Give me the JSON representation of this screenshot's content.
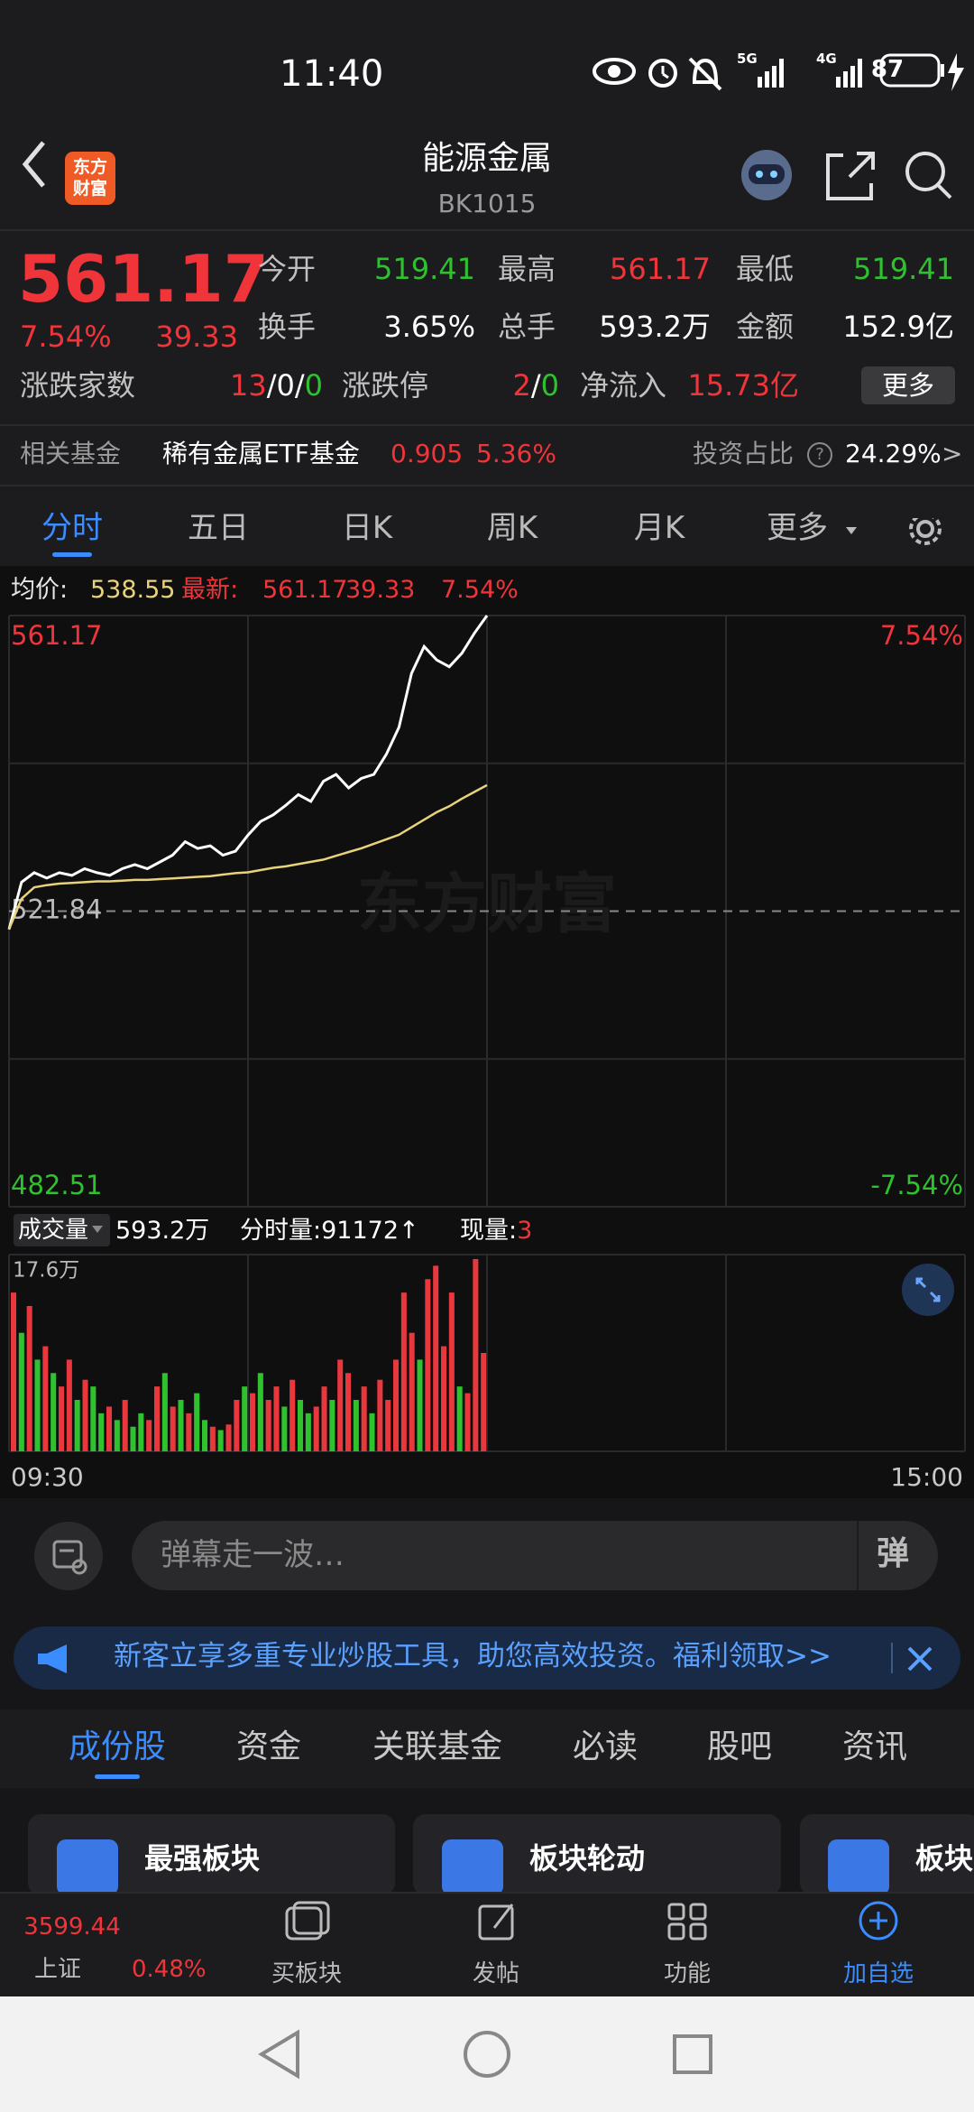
{
  "status_bar": {
    "time": "11:40",
    "net1": "5G",
    "net2": "4G",
    "battery": "87"
  },
  "header": {
    "logo": [
      "东方",
      "财富"
    ],
    "title": "能源金属",
    "code": "BK1015"
  },
  "quote": {
    "price": "561.17",
    "change_pct": "7.54%",
    "change": "39.33",
    "stats": [
      {
        "label": "今开",
        "value": "519.41",
        "color": "#2ec22e"
      },
      {
        "label": "最高",
        "value": "561.17",
        "color": "#f0353a"
      },
      {
        "label": "最低",
        "value": "519.41",
        "color": "#2ec22e"
      },
      {
        "label": "换手",
        "value": "3.65%",
        "color": "#ffffff"
      },
      {
        "label": "总手",
        "value": "593.2万",
        "color": "#ffffff"
      },
      {
        "label": "金额",
        "value": "152.9亿",
        "color": "#ffffff"
      }
    ],
    "counts": {
      "label": "涨跌家数",
      "up": "13",
      "sep": "/",
      "flat": "0",
      "down": "0"
    },
    "limit": {
      "label": "涨跌停",
      "up": "2",
      "sep": "/",
      "down": "0"
    },
    "inflow": {
      "label": "净流入",
      "value": "15.73亿"
    },
    "more": "更多"
  },
  "fund": {
    "label": "相关基金",
    "name": "稀有金属ETF基金",
    "price": "0.905",
    "change": "5.36%",
    "ratio_label": "投资占比",
    "ratio_help": "?",
    "ratio": "24.29%",
    "arrow": ">"
  },
  "tabs": {
    "items": [
      "分时",
      "五日",
      "日K",
      "周K",
      "月K",
      "更多"
    ],
    "active": 0
  },
  "info": {
    "avg_label": "均价:",
    "avg": "538.55",
    "last_label": "最新:",
    "last": "561.17",
    "change": "39.33",
    "change_pct": "7.54%"
  },
  "chart_data": [
    {
      "type": "line",
      "watermark": "东方财富",
      "ylim": [
        482.51,
        561.17
      ],
      "yticks": [
        561.17,
        521.84,
        482.51
      ],
      "ytick_colors": [
        "#f0353a",
        "#bbbbbb",
        "#2ec22e"
      ],
      "y2lim": [
        -7.54,
        7.54
      ],
      "y2ticks": [
        {
          "value": 7.54,
          "label": "7.54%"
        },
        {
          "value": -7.54,
          "label": "-7.54%"
        }
      ],
      "y2tick_colors": [
        "#f0353a",
        "#2ec22e"
      ],
      "grid": true,
      "series": [
        {
          "color": "#ffffff",
          "values": [
            519.42,
            525.69,
            526.95,
            526.23,
            526.95,
            526.59,
            527.48,
            526.95,
            526.59,
            527.48,
            528.02,
            527.48,
            528.38,
            529.28,
            531.07,
            530.17,
            530.53,
            529.28,
            529.81,
            531.96,
            533.76,
            534.65,
            535.91,
            537.34,
            536.44,
            539.13,
            540.03,
            538.23,
            539.49,
            540.03,
            542.71,
            546.3,
            553.47,
            557.05,
            555.26,
            554.36,
            556.15,
            558.84,
            561.17
          ]
        },
        {
          "color": "#e8d27a",
          "values": [
            519.4,
            523.5,
            525.0,
            525.3,
            525.5,
            525.6,
            525.7,
            525.8,
            525.8,
            525.9,
            526.0,
            526.0,
            526.1,
            526.2,
            526.3,
            526.4,
            526.5,
            526.7,
            526.9,
            527.0,
            527.3,
            527.6,
            527.8,
            528.1,
            528.4,
            528.7,
            529.2,
            529.7,
            530.2,
            530.8,
            531.4,
            532.0,
            533.0,
            534.0,
            535.0,
            535.8,
            536.8,
            537.7,
            538.6
          ]
        }
      ]
    },
    {
      "type": "bar",
      "label": "成交量",
      "total": "593.2万",
      "tick_label": "分时量:",
      "tick_value": "91172",
      "tick_arrow": "↑",
      "now_label": "现量:",
      "now_value": "3",
      "ylim": [
        0,
        17.6
      ],
      "yticks": [
        {
          "value": 17.6,
          "label": "17.6万"
        }
      ],
      "x_labels": [
        "09:30",
        "15:00"
      ],
      "values": [
        14.2,
        10.6,
        13.0,
        8.2,
        9.4,
        7.0,
        5.8,
        8.2,
        4.6,
        6.4,
        5.8,
        3.4,
        4.0,
        2.8,
        4.6,
        2.2,
        3.4,
        2.8,
        5.8,
        7.0,
        4.0,
        4.6,
        3.4,
        5.2,
        2.8,
        2.2,
        1.9,
        2.4,
        4.6,
        5.8,
        5.2,
        7.0,
        4.6,
        5.8,
        4.0,
        6.4,
        4.6,
        3.4,
        4.0,
        5.8,
        4.6,
        8.2,
        7.0,
        4.6,
        5.8,
        3.4,
        6.4,
        4.6,
        8.2,
        14.2,
        10.6,
        8.2,
        15.4,
        16.6,
        9.4,
        14.2,
        5.8,
        5.2,
        17.2,
        8.8
      ],
      "colors": [
        "#e8383d",
        "#2ec22e",
        "#e8383d",
        "#2ec22e",
        "#e8383d",
        "#2ec22e",
        "#e8383d",
        "#e8383d",
        "#2ec22e",
        "#e8383d",
        "#2ec22e",
        "#2ec22e",
        "#e8383d",
        "#2ec22e",
        "#e8383d",
        "#2ec22e",
        "#2ec22e",
        "#e8383d",
        "#e8383d",
        "#2ec22e",
        "#e8383d",
        "#2ec22e",
        "#e8383d",
        "#2ec22e",
        "#2ec22e",
        "#e8383d",
        "#2ec22e",
        "#e8383d",
        "#e8383d",
        "#2ec22e",
        "#e8383d",
        "#2ec22e",
        "#e8383d",
        "#e8383d",
        "#2ec22e",
        "#e8383d",
        "#2ec22e",
        "#2ec22e",
        "#e8383d",
        "#e8383d",
        "#2ec22e",
        "#e8383d",
        "#e8383d",
        "#2ec22e",
        "#e8383d",
        "#2ec22e",
        "#e8383d",
        "#e8383d",
        "#e8383d",
        "#e8383d",
        "#e8383d",
        "#2ec22e",
        "#e8383d",
        "#e8383d",
        "#e8383d",
        "#e8383d",
        "#2ec22e",
        "#e8383d",
        "#e8383d",
        "#e8383d"
      ]
    }
  ],
  "comment": {
    "placeholder": "弹幕走一波…",
    "send": "弹"
  },
  "banner": {
    "text": "新客立享多重专业炒股工具，助您高效投资。福利领取>>"
  },
  "sub_tabs": {
    "items": [
      "成份股",
      "资金",
      "关联基金",
      "必读",
      "股吧",
      "资讯"
    ],
    "active": 0
  },
  "cards": [
    {
      "title": "最强板块"
    },
    {
      "title": "板块轮动"
    },
    {
      "title": "板块"
    }
  ],
  "bottom_nav": {
    "index_value": "3599.44",
    "index_name": "上证",
    "index_change": "0.48%",
    "items": [
      "买板块",
      "发帖",
      "功能",
      "加自选"
    ]
  }
}
